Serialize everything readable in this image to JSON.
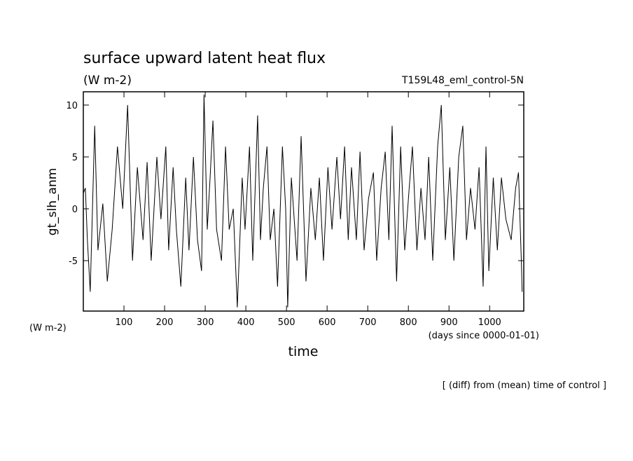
{
  "chart_data": {
    "type": "line",
    "title": "surface upward latent heat flux",
    "subtitle": "(W m-2)",
    "run_label": "T159L48_eml_control-5N",
    "y_label": "gt_slh_anm",
    "y_unit_label": "(W m-2)",
    "x_unit_label": "(days since 0000-01-01)",
    "x_label": "time",
    "footnote": "[ (diff) from (mean) time of control ]",
    "xlim": [
      0,
      1084
    ],
    "xticks": [
      100,
      200,
      300,
      400,
      500,
      600,
      700,
      800,
      900,
      1000
    ],
    "ylim": [
      -9.86,
      11.28
    ],
    "yticks": [
      -5,
      0,
      5,
      10
    ],
    "grid": false,
    "series": [
      {
        "color": "#000000",
        "x": [
          0,
          5,
          10,
          17,
          28,
          36,
          48,
          59,
          71,
          84,
          97,
          109,
          121,
          133,
          147,
          157,
          167,
          181,
          191,
          203,
          210,
          221,
          229,
          240,
          252,
          260,
          271,
          281,
          291,
          297,
          305,
          312,
          319,
          328,
          340,
          350,
          359,
          369,
          379,
          391,
          398,
          409,
          417,
          429,
          436,
          443,
          452,
          460,
          469,
          478,
          490,
          498,
          503,
          512,
          526,
          536,
          548,
          560,
          571,
          581,
          591,
          602,
          612,
          624,
          633,
          643,
          652,
          660,
          672,
          681,
          691,
          702,
          714,
          722,
          733,
          743,
          752,
          760,
          771,
          781,
          791,
          802,
          810,
          821,
          831,
          841,
          850,
          860,
          872,
          881,
          891,
          902,
          912,
          924,
          934,
          943,
          953,
          964,
          974,
          984,
          991,
          998,
          1009,
          1019,
          1029,
          1040,
          1053,
          1064,
          1071,
          1078,
          1080
        ],
        "values": [
          1.5,
          2,
          -3,
          -8,
          8,
          -4,
          0.5,
          -7,
          -2,
          6,
          0,
          10,
          -5,
          4,
          -3,
          4.5,
          -5,
          5,
          -1,
          6,
          -4,
          4,
          -2,
          -7.5,
          3,
          -4,
          5,
          -3,
          -6,
          11,
          -2,
          3,
          8.5,
          -2,
          -5,
          6,
          -2,
          0,
          -9.5,
          3,
          -2,
          6,
          -5,
          9,
          -3,
          2,
          6,
          -3,
          0,
          -7.5,
          6,
          0,
          -9.5,
          3,
          -5,
          7,
          -7,
          2,
          -3,
          3,
          -5,
          4,
          -2,
          5,
          -1,
          6,
          -3,
          4,
          -3,
          5.5,
          -4,
          1,
          3.5,
          -5,
          2,
          5.5,
          -3,
          8,
          -7,
          6,
          -4,
          2,
          6,
          -4,
          2,
          -3,
          5,
          -5,
          6,
          10,
          -3,
          4,
          -5,
          5,
          8,
          -3,
          2,
          -2,
          4,
          -7.5,
          6,
          -6,
          3,
          -4,
          3,
          -1,
          -3,
          2,
          3.5,
          -5,
          -8
        ]
      }
    ]
  }
}
